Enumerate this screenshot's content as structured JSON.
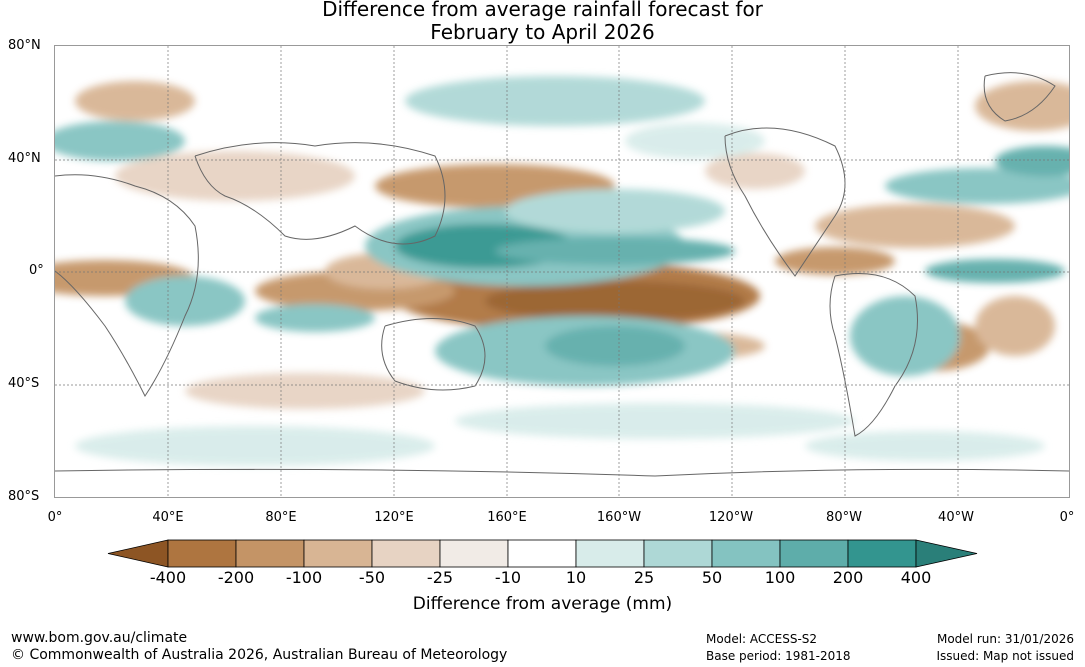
{
  "title_line1": "Difference from average rainfall forecast for",
  "title_line2": "February to April 2026",
  "map": {
    "lat_labels": [
      "80°N",
      "40°N",
      "0°",
      "40°S",
      "80°S"
    ],
    "lon_labels": [
      "0°",
      "40°E",
      "80°E",
      "120°E",
      "160°E",
      "160°W",
      "120°W",
      "80°W",
      "40°W",
      "0°"
    ]
  },
  "colorbar": {
    "title": "Difference from average (mm)",
    "tick_labels": [
      "-400",
      "-200",
      "-100",
      "-50",
      "-25",
      "-10",
      "10",
      "25",
      "50",
      "100",
      "200",
      "400"
    ],
    "bin_colors": [
      "#8d5524",
      "#ae7540",
      "#c49466",
      "#d8b594",
      "#e7d3c3",
      "#f1ebe6",
      "#ffffff",
      "#d8ecea",
      "#aed8d6",
      "#84c3c1",
      "#5eadaa",
      "#33958f",
      "#2a7f79"
    ]
  },
  "footer": {
    "url": "www.bom.gov.au/climate",
    "copyright": "© Commonwealth of Australia 2026, Australian Bureau of Meteorology",
    "model": "Model: ACCESS-S2",
    "base_period": "Base period: 1981-2018",
    "model_run": "Model run: 31/01/2026",
    "issued": "Issued: Map not issued"
  }
}
